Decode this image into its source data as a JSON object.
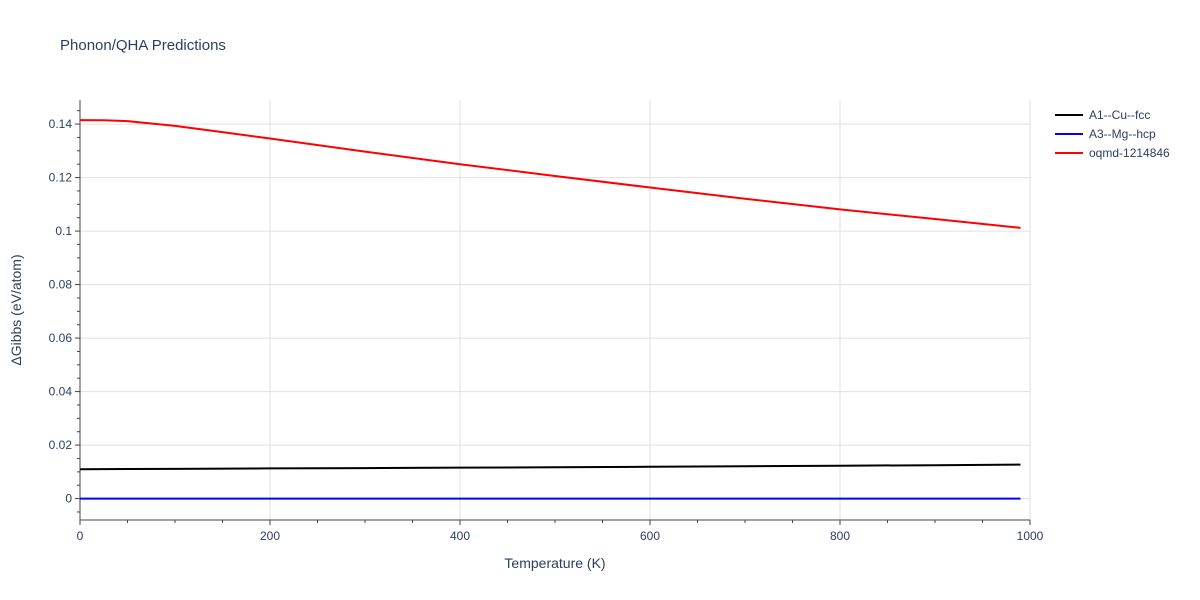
{
  "chart_data": {
    "type": "line",
    "title": "Phonon/QHA Predictions",
    "xlabel": "Temperature (K)",
    "ylabel": "ΔGibbs (eV/atom)",
    "xlim": [
      0,
      1000
    ],
    "ylim": [
      -0.008,
      0.149
    ],
    "xticks": [
      0,
      200,
      400,
      600,
      800,
      1000
    ],
    "xtick_labels": [
      "0",
      "200",
      "400",
      "600",
      "800",
      "1000"
    ],
    "yticks": [
      0,
      0.02,
      0.04,
      0.06,
      0.08,
      0.1,
      0.12,
      0.14
    ],
    "ytick_labels": [
      "0",
      "0.02",
      "0.04",
      "0.06",
      "0.08",
      "0.1",
      "0.12",
      "0.14"
    ],
    "grid": true,
    "legend_position": "top-right",
    "series": [
      {
        "name": "A1--Cu--fcc",
        "color": "#000000",
        "x": [
          0,
          100,
          200,
          300,
          400,
          500,
          600,
          700,
          800,
          900,
          990
        ],
        "y": [
          0.011,
          0.0111,
          0.0113,
          0.0114,
          0.0116,
          0.0117,
          0.0119,
          0.0121,
          0.0123,
          0.0125,
          0.0127
        ]
      },
      {
        "name": "A3--Mg--hcp",
        "color": "#0000ff",
        "x": [
          0,
          100,
          200,
          300,
          400,
          500,
          600,
          700,
          800,
          900,
          990
        ],
        "y": [
          0,
          0,
          0,
          0,
          0,
          0,
          0,
          0,
          0,
          0,
          0
        ]
      },
      {
        "name": "oqmd-1214846",
        "color": "#ff0000",
        "x": [
          0,
          25,
          50,
          100,
          150,
          200,
          300,
          400,
          500,
          600,
          700,
          800,
          900,
          990
        ],
        "y": [
          0.1415,
          0.1414,
          0.1411,
          0.1393,
          0.137,
          0.1346,
          0.1297,
          0.125,
          0.1206,
          0.1163,
          0.1121,
          0.1081,
          0.1045,
          0.1012
        ]
      }
    ]
  }
}
